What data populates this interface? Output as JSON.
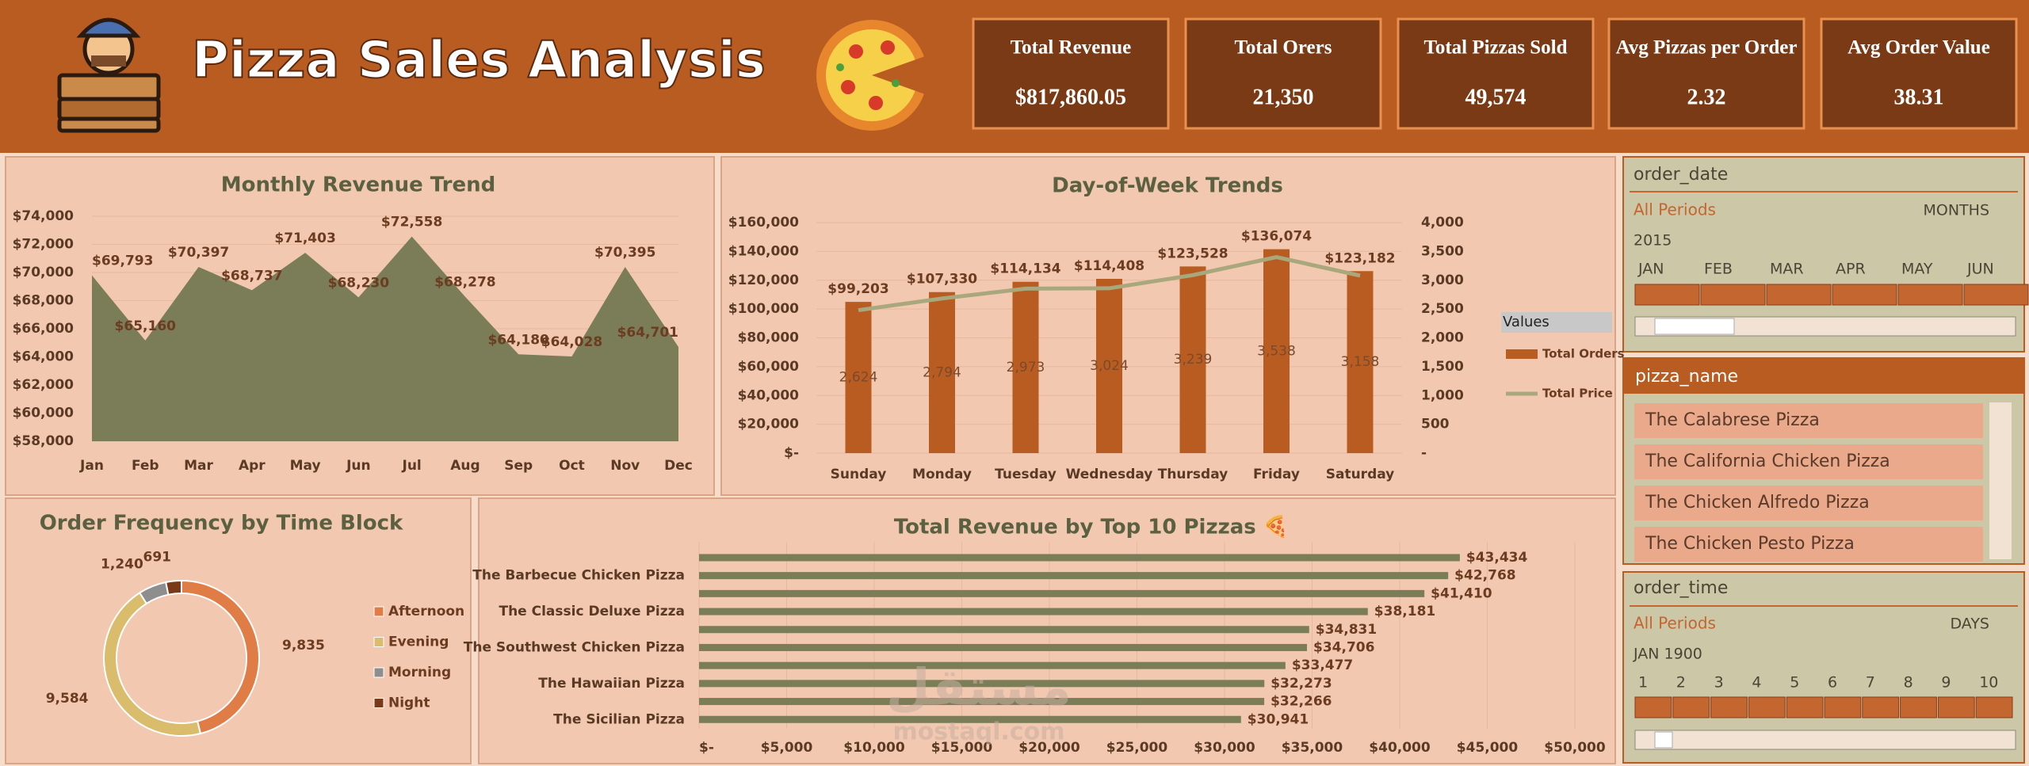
{
  "header": {
    "title": "Pizza Sales Analysis"
  },
  "kpis": [
    {
      "label": "Total Revenue",
      "value": "$817,860.05"
    },
    {
      "label": "Total Orers",
      "value": "21,350"
    },
    {
      "label": "Total Pizzas Sold",
      "value": "49,574"
    },
    {
      "label": "Avg Pizzas per Order",
      "value": "2.32"
    },
    {
      "label": "Avg Order Value",
      "value": "38.31"
    }
  ],
  "chart_data": [
    {
      "type": "area",
      "title": "Monthly Revenue Trend",
      "categories": [
        "Jan",
        "Feb",
        "Mar",
        "Apr",
        "May",
        "Jun",
        "Jul",
        "Aug",
        "Sep",
        "Oct",
        "Nov",
        "Dec"
      ],
      "values": [
        69793,
        65160,
        70397,
        68737,
        71403,
        68230,
        72558,
        68278,
        64180,
        64028,
        70395,
        64701
      ],
      "value_labels": [
        "$69,793",
        "$65,160",
        "$70,397",
        "$68,737",
        "$71,403",
        "$68,230",
        "$72,558",
        "$68,278",
        "$64,180",
        "$64,028",
        "$70,395",
        "$64,701"
      ],
      "color": "#7a7d57",
      "ylim": [
        58000,
        74000
      ],
      "yticks": [
        {
          "value": 58000,
          "label": "$58,000"
        },
        {
          "value": 60000,
          "label": "$60,000"
        },
        {
          "value": 62000,
          "label": "$62,000"
        },
        {
          "value": 64000,
          "label": "$64,000"
        },
        {
          "value": 66000,
          "label": "$66,000"
        },
        {
          "value": 68000,
          "label": "$68,000"
        },
        {
          "value": 70000,
          "label": "$70,000"
        },
        {
          "value": 72000,
          "label": "$72,000"
        },
        {
          "value": 74000,
          "label": "$74,000"
        }
      ],
      "grid": true
    },
    {
      "type": "combo",
      "title": "Day-of-Week Trends",
      "categories": [
        "Sunday",
        "Monday",
        "Tuesday",
        "Wednesday",
        "Thursday",
        "Friday",
        "Saturday"
      ],
      "series": [
        {
          "name": "Total Orders",
          "type": "bar",
          "axis": "y2",
          "color": "#b95c22",
          "values": [
            2624,
            2794,
            2973,
            3024,
            3239,
            3538,
            3158
          ],
          "value_labels": [
            "2,624",
            "2,794",
            "2,973",
            "3,024",
            "3,239",
            "3,538",
            "3,158"
          ]
        },
        {
          "name": "Total Price",
          "type": "line",
          "axis": "y",
          "color": "#a9a77c",
          "values": [
            99203,
            107330,
            114134,
            114408,
            123528,
            136074,
            123182
          ],
          "value_labels": [
            "$99,203",
            "$107,330",
            "$114,134",
            "$114,408",
            "$123,528",
            "$136,074",
            "$123,182"
          ]
        }
      ],
      "ylim": [
        0,
        160000
      ],
      "yticks": [
        {
          "value": 0,
          "label": "$-"
        },
        {
          "value": 20000,
          "label": "$20,000"
        },
        {
          "value": 40000,
          "label": "$40,000"
        },
        {
          "value": 60000,
          "label": "$60,000"
        },
        {
          "value": 80000,
          "label": "$80,000"
        },
        {
          "value": 100000,
          "label": "$100,000"
        },
        {
          "value": 120000,
          "label": "$120,000"
        },
        {
          "value": 140000,
          "label": "$140,000"
        },
        {
          "value": 160000,
          "label": "$160,000"
        }
      ],
      "y2lim": [
        0,
        4000
      ],
      "y2ticks": [
        {
          "value": 0,
          "label": "-"
        },
        500,
        {
          "value": 1000,
          "label": "1,000"
        },
        {
          "value": 1500,
          "label": "1,500"
        },
        {
          "value": 2000,
          "label": "2,000"
        },
        {
          "value": 2500,
          "label": "2,500"
        },
        {
          "value": 3000,
          "label": "3,000"
        },
        {
          "value": 3500,
          "label": "3,500"
        },
        {
          "value": 4000,
          "label": "4,000"
        }
      ],
      "legend_title": "Values",
      "legend": "right",
      "grid": true
    },
    {
      "type": "donut",
      "title": "Order Frequency by Time Block",
      "categories": [
        "Afternoon",
        "Evening",
        "Morning",
        "Night"
      ],
      "values": [
        9835,
        9584,
        1240,
        691
      ],
      "value_labels": [
        "9,835",
        "9,584",
        "1,240",
        "691"
      ],
      "colors": [
        "#e07d47",
        "#d9bd6c",
        "#8e8e8e",
        "#7a3a1a"
      ],
      "legend": "right"
    },
    {
      "type": "hbar",
      "title": "Total Revenue by Top 10 Pizzas 🍕",
      "categories": [
        null,
        "The Barbecue Chicken Pizza",
        null,
        "The Classic Deluxe Pizza",
        null,
        "The Southwest Chicken Pizza",
        null,
        "The Hawaiian Pizza",
        null,
        "The Sicilian Pizza"
      ],
      "values": [
        43434,
        42768,
        41410,
        38181,
        34831,
        34706,
        33477,
        32273,
        32266,
        30941
      ],
      "value_labels": [
        "$43,434",
        "$42,768",
        "$41,410",
        "$38,181",
        "$34,831",
        "$34,706",
        "$33,477",
        "$32,273",
        "$32,266",
        "$30,941"
      ],
      "color": "#7a7d57",
      "xlim": [
        0,
        50000
      ],
      "xticks": [
        {
          "value": 0,
          "label": "$-"
        },
        {
          "value": 5000,
          "label": "$5,000"
        },
        {
          "value": 10000,
          "label": "$10,000"
        },
        {
          "value": 15000,
          "label": "$15,000"
        },
        {
          "value": 20000,
          "label": "$20,000"
        },
        {
          "value": 25000,
          "label": "$25,000"
        },
        {
          "value": 30000,
          "label": "$30,000"
        },
        {
          "value": 35000,
          "label": "$35,000"
        },
        {
          "value": 40000,
          "label": "$40,000"
        },
        {
          "value": 45000,
          "label": "$45,000"
        },
        {
          "value": 50000,
          "label": "$50,000"
        }
      ],
      "grid": true
    }
  ],
  "slicers": {
    "order_date": {
      "title": "order_date",
      "selection": "All Periods",
      "level": "MONTHS",
      "year": "2015",
      "periods": [
        "JAN",
        "FEB",
        "MAR",
        "APR",
        "MAY",
        "JUN"
      ]
    },
    "pizza_name": {
      "title": "pizza_name",
      "items": [
        "The Calabrese Pizza",
        "The California Chicken Pizza",
        "The Chicken Alfredo Pizza",
        "The Chicken Pesto Pizza"
      ]
    },
    "order_time": {
      "title": "order_time",
      "selection": "All Periods",
      "level": "DAYS",
      "period": "JAN 1900",
      "periods": [
        "1",
        "2",
        "3",
        "4",
        "5",
        "6",
        "7",
        "8",
        "9",
        "10"
      ]
    }
  },
  "watermark": {
    "text": "مستقل",
    "url": "mostaql.com"
  }
}
